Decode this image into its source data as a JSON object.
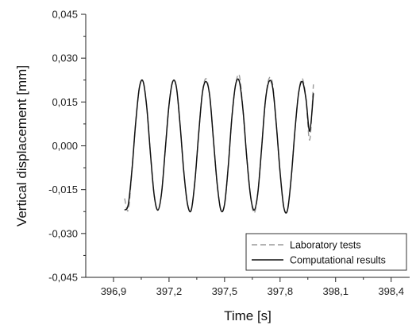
{
  "chart_data": {
    "type": "line",
    "title": "",
    "xlabel": "Time [s]",
    "ylabel": "Vertical displacement [mm]",
    "xlim": [
      396.75,
      398.5
    ],
    "ylim": [
      -0.045,
      0.045
    ],
    "x_ticks": [
      396.9,
      397.2,
      397.5,
      397.8,
      398.1,
      398.4
    ],
    "x_tick_labels": [
      "396,9",
      "397,2",
      "397,5",
      "397,8",
      "398,1",
      "398,4"
    ],
    "y_ticks": [
      -0.045,
      -0.03,
      -0.015,
      0.0,
      0.015,
      0.03,
      0.045
    ],
    "y_tick_labels": [
      "-0,045",
      "-0,030",
      "-0,015",
      "0,000",
      "0,015",
      "0,030",
      "0,045"
    ],
    "grid": false,
    "legend_position": "bottom-right",
    "series": [
      {
        "name": "Laboratory tests",
        "style": "dashed",
        "color": "#9a9a9a",
        "x": [
          396.96,
          396.98,
          397.0,
          397.02,
          397.04,
          397.06,
          397.08,
          397.1,
          397.12,
          397.14,
          397.16,
          397.18,
          397.2,
          397.22,
          397.24,
          397.26,
          397.28,
          397.3,
          397.32,
          397.34,
          397.36,
          397.38,
          397.4,
          397.42,
          397.44,
          397.46,
          397.48,
          397.5,
          397.52,
          397.54,
          397.56,
          397.58,
          397.6,
          397.62,
          397.64,
          397.66,
          397.68,
          397.7,
          397.72,
          397.74,
          397.76,
          397.78,
          397.8,
          397.82,
          397.84,
          397.86,
          397.88,
          397.9,
          397.92,
          397.94,
          397.96,
          397.98
        ],
        "y": [
          -0.018,
          -0.022,
          -0.008,
          0.008,
          0.02,
          0.022,
          0.013,
          -0.003,
          -0.017,
          -0.022,
          -0.016,
          -0.001,
          0.014,
          0.022,
          0.02,
          0.007,
          -0.009,
          -0.02,
          -0.022,
          -0.012,
          0.004,
          0.018,
          0.023,
          0.017,
          0.002,
          -0.013,
          -0.022,
          -0.02,
          -0.007,
          0.01,
          0.021,
          0.024,
          0.012,
          -0.004,
          -0.017,
          -0.023,
          -0.016,
          -0.001,
          0.015,
          0.023,
          0.021,
          0.007,
          -0.009,
          -0.021,
          -0.022,
          -0.011,
          0.005,
          0.018,
          0.023,
          0.016,
          0.002,
          0.021
        ]
      },
      {
        "name": "Computational results",
        "style": "solid",
        "color": "#111111",
        "x": [
          396.96,
          396.98,
          397.0,
          397.02,
          397.04,
          397.06,
          397.08,
          397.1,
          397.12,
          397.14,
          397.16,
          397.18,
          397.2,
          397.22,
          397.24,
          397.26,
          397.28,
          397.3,
          397.32,
          397.34,
          397.36,
          397.38,
          397.4,
          397.42,
          397.44,
          397.46,
          397.48,
          397.5,
          397.52,
          397.54,
          397.56,
          397.58,
          397.6,
          397.62,
          397.64,
          397.66,
          397.68,
          397.7,
          397.72,
          397.74,
          397.76,
          397.78,
          397.8,
          397.82,
          397.84,
          397.86,
          397.88,
          397.9,
          397.92,
          397.94,
          397.96,
          397.98
        ],
        "y": [
          -0.022,
          -0.02,
          -0.008,
          0.008,
          0.02,
          0.022,
          0.013,
          -0.003,
          -0.017,
          -0.022,
          -0.016,
          -0.001,
          0.014,
          0.022,
          0.02,
          0.007,
          -0.009,
          -0.02,
          -0.022,
          -0.012,
          0.004,
          0.018,
          0.022,
          0.017,
          0.002,
          -0.013,
          -0.022,
          -0.02,
          -0.007,
          0.01,
          0.021,
          0.022,
          0.012,
          -0.004,
          -0.017,
          -0.022,
          -0.016,
          -0.001,
          0.015,
          0.022,
          0.02,
          0.007,
          -0.009,
          -0.021,
          -0.022,
          -0.011,
          0.005,
          0.018,
          0.022,
          0.016,
          0.005,
          0.018
        ]
      }
    ]
  }
}
